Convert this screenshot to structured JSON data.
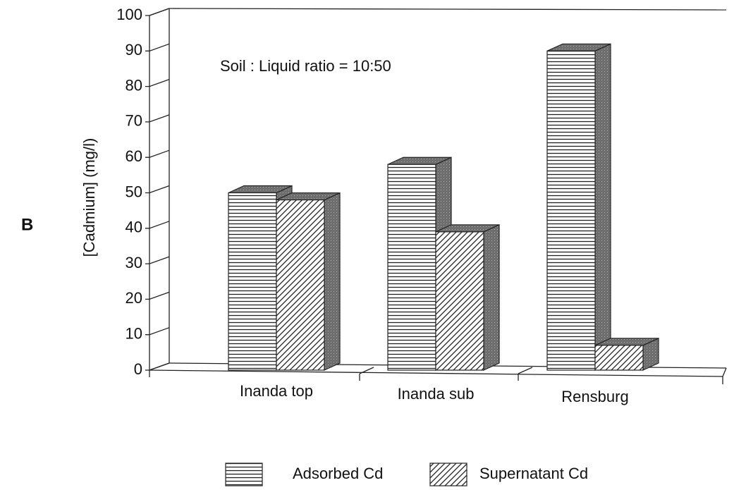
{
  "chart_data": {
    "type": "bar3d",
    "panel_label": "B",
    "annotation": "Soil : Liquid ratio = 10:50",
    "ylabel": "[Cadmium] (mg/l)",
    "categories": [
      "Inanda top",
      "Inanda sub",
      "Rensburg"
    ],
    "series": [
      {
        "name": "Adsorbed Cd",
        "pattern": "horizontal",
        "values": [
          50,
          58,
          90
        ]
      },
      {
        "name": "Supernatant Cd",
        "pattern": "diagonal",
        "values": [
          48,
          39,
          7
        ]
      }
    ],
    "ylim": [
      0,
      100
    ],
    "yticks": [
      0,
      10,
      20,
      30,
      40,
      50,
      60,
      70,
      80,
      90,
      100
    ]
  }
}
